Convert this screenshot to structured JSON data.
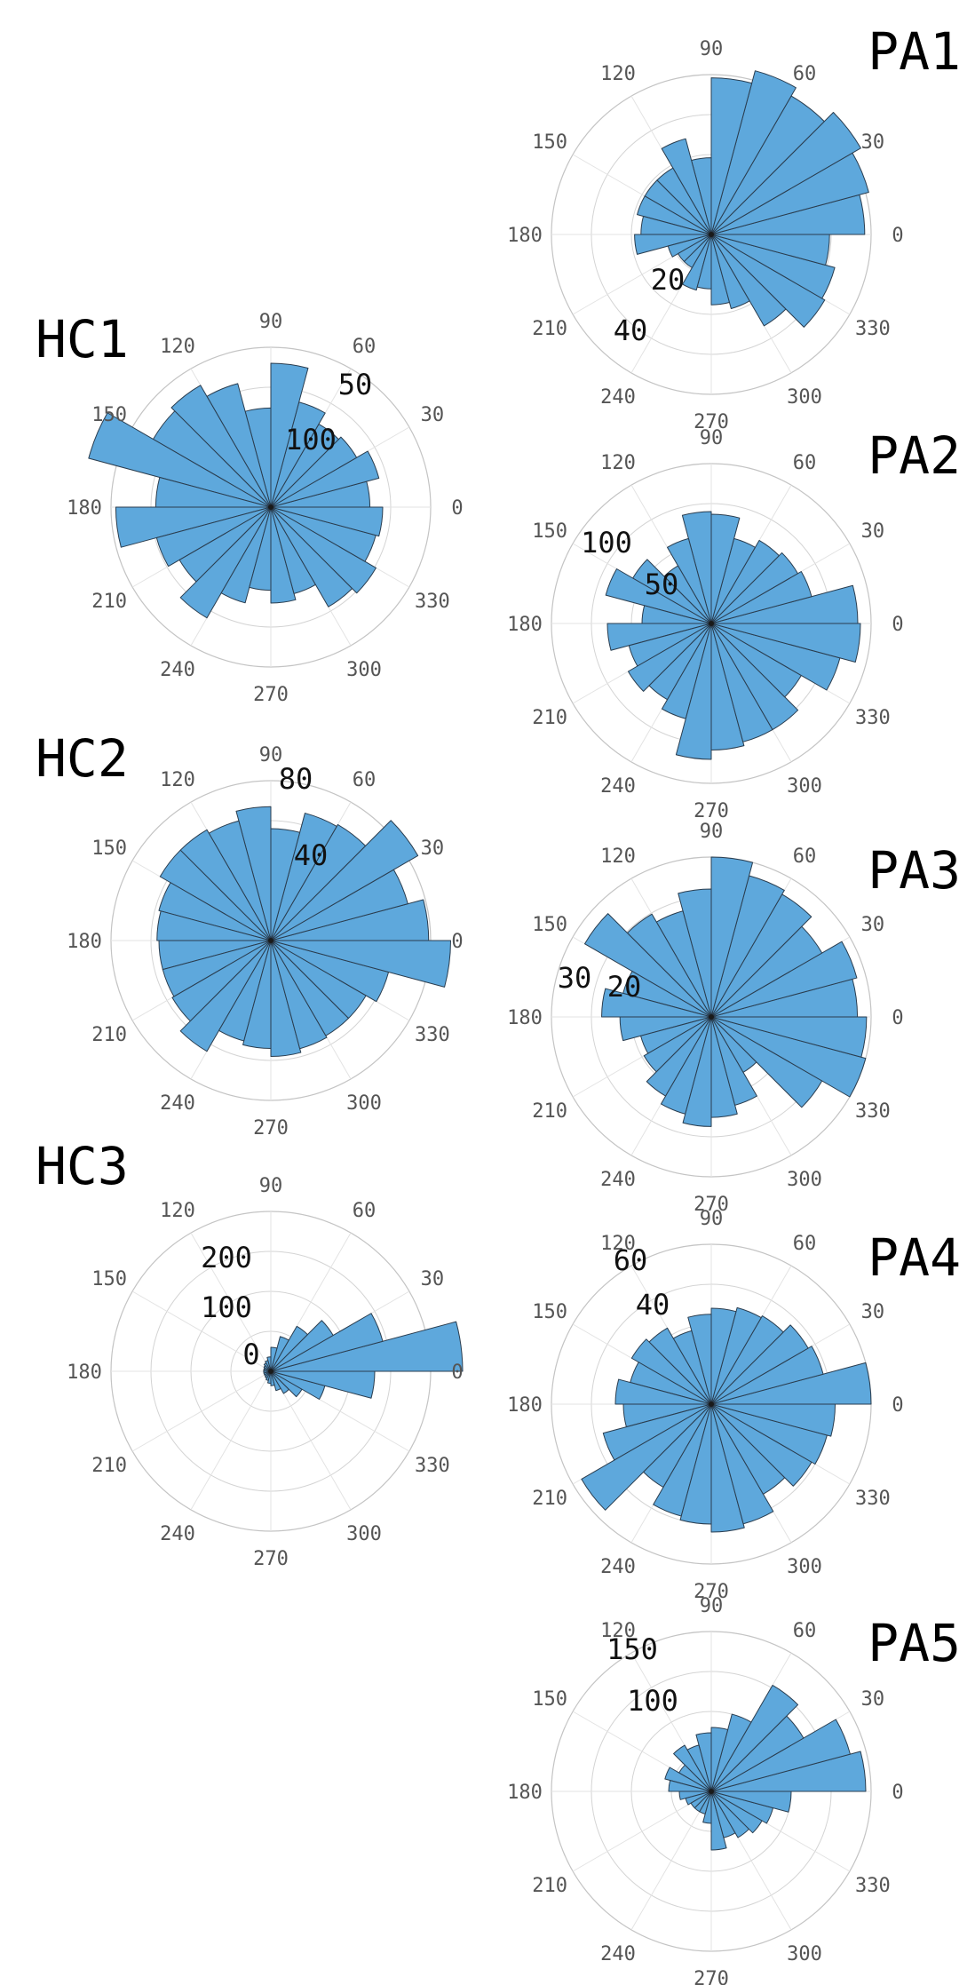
{
  "chart_data": [
    {
      "type": "rose",
      "title": "HC1",
      "angle_ticks": [
        "0",
        "30",
        "60",
        "90",
        "120",
        "150",
        "180",
        "210",
        "240",
        "270",
        "300",
        "330"
      ],
      "bin_width_deg": 15,
      "bin_start_deg": [
        0,
        15,
        30,
        45,
        60,
        75,
        90,
        105,
        120,
        135,
        150,
        165,
        180,
        195,
        210,
        225,
        240,
        255,
        270,
        285,
        300,
        315,
        330,
        345
      ],
      "values": [
        62,
        70,
        62,
        60,
        68,
        90,
        62,
        80,
        88,
        85,
        118,
        72,
        97,
        74,
        66,
        80,
        62,
        52,
        60,
        56,
        72,
        76,
        68,
        70
      ],
      "rmax": 100,
      "radial_ticks": [
        "50",
        "100"
      ]
    },
    {
      "type": "rose",
      "title": "HC2",
      "angle_ticks": [
        "0",
        "30",
        "60",
        "90",
        "120",
        "150",
        "180",
        "210",
        "240",
        "270",
        "300",
        "330"
      ],
      "bin_width_deg": 15,
      "bin_start_deg": [
        0,
        15,
        30,
        45,
        60,
        75,
        90,
        105,
        120,
        135,
        150,
        165,
        180,
        195,
        210,
        225,
        240,
        255,
        270,
        285,
        300,
        315,
        330,
        345
      ],
      "values": [
        79,
        71,
        85,
        67,
        66,
        56,
        67,
        62,
        64,
        64,
        58,
        57,
        56,
        56,
        57,
        64,
        52,
        54,
        58,
        56,
        55,
        55,
        61,
        90
      ],
      "rmax": 80,
      "radial_ticks": [
        "40",
        "80"
      ]
    },
    {
      "type": "rose",
      "title": "HC3",
      "angle_ticks": [
        "0",
        "30",
        "60",
        "90",
        "120",
        "150",
        "180",
        "210",
        "240",
        "270",
        "300",
        "330"
      ],
      "bin_width_deg": 15,
      "bin_start_deg": [
        0,
        15,
        30,
        45,
        60,
        75,
        90,
        105,
        120,
        135,
        150,
        165,
        180,
        195,
        210,
        225,
        240,
        255,
        270,
        285,
        300,
        315,
        330,
        345
      ],
      "values": [
        240,
        145,
        90,
        65,
        45,
        30,
        18,
        14,
        12,
        10,
        9,
        9,
        9,
        9,
        9,
        10,
        12,
        15,
        18,
        25,
        32,
        45,
        70,
        130
      ],
      "rmax": 200,
      "radial_ticks": [
        "0",
        "100",
        "200"
      ]
    },
    {
      "type": "rose",
      "title": "PA1",
      "angle_ticks": [
        "0",
        "30",
        "60",
        "90",
        "120",
        "150",
        "180",
        "210",
        "240",
        "270",
        "300",
        "330"
      ],
      "bin_width_deg": 15,
      "bin_start_deg": [
        0,
        15,
        30,
        45,
        60,
        75,
        90,
        105,
        120,
        135,
        150,
        165,
        180,
        195,
        210,
        225,
        240,
        255,
        270,
        285,
        300,
        315,
        330,
        345
      ],
      "values": [
        48,
        51,
        54,
        50,
        53,
        49,
        24,
        31,
        24,
        24,
        24,
        22,
        24,
        14,
        12,
        12,
        18,
        17,
        22,
        24,
        33,
        41,
        40,
        37
      ],
      "rmax": 50,
      "radial_ticks": [
        "20",
        "40"
      ]
    },
    {
      "type": "rose",
      "title": "PA2",
      "angle_ticks": [
        "0",
        "30",
        "60",
        "90",
        "120",
        "150",
        "180",
        "210",
        "240",
        "270",
        "300",
        "330"
      ],
      "bin_width_deg": 15,
      "bin_start_deg": [
        0,
        15,
        30,
        45,
        60,
        75,
        90,
        105,
        120,
        135,
        150,
        165,
        180,
        195,
        210,
        225,
        240,
        255,
        270,
        285,
        300,
        315,
        330,
        345
      ],
      "values": [
        110,
        78,
        75,
        72,
        66,
        82,
        84,
        66,
        50,
        68,
        82,
        52,
        78,
        64,
        72,
        66,
        74,
        102,
        95,
        92,
        92,
        78,
        100,
        112
      ],
      "rmax": 120,
      "radial_ticks": [
        "50",
        "100"
      ]
    },
    {
      "type": "rose",
      "title": "PA3",
      "angle_ticks": [
        "0",
        "30",
        "60",
        "90",
        "120",
        "150",
        "180",
        "210",
        "240",
        "270",
        "300",
        "330"
      ],
      "bin_width_deg": 15,
      "bin_start_deg": [
        0,
        15,
        30,
        45,
        60,
        75,
        90,
        105,
        120,
        135,
        150,
        165,
        180,
        195,
        210,
        225,
        240,
        255,
        270,
        285,
        300,
        315,
        330,
        345
      ],
      "values": [
        32,
        33,
        28,
        31,
        32,
        35,
        28,
        24,
        26,
        32,
        20,
        24,
        20,
        16,
        17,
        20,
        22,
        24,
        22,
        20,
        14,
        28,
        35,
        34
      ],
      "rmax": 35,
      "radial_ticks": [
        "20",
        "30"
      ]
    },
    {
      "type": "rose",
      "title": "PA4",
      "angle_ticks": [
        "0",
        "30",
        "60",
        "90",
        "120",
        "150",
        "180",
        "210",
        "240",
        "270",
        "300",
        "330"
      ],
      "bin_width_deg": 15,
      "bin_start_deg": [
        0,
        15,
        30,
        45,
        60,
        75,
        90,
        105,
        120,
        135,
        150,
        165,
        180,
        195,
        210,
        225,
        240,
        255,
        270,
        285,
        300,
        315,
        330,
        345
      ],
      "values": [
        80,
        58,
        56,
        51,
        50,
        48,
        45,
        38,
        44,
        46,
        42,
        48,
        44,
        56,
        75,
        48,
        58,
        60,
        64,
        62,
        52,
        58,
        60,
        62
      ],
      "rmax": 80,
      "radial_ticks": [
        "40",
        "60"
      ]
    },
    {
      "type": "rose",
      "title": "PA5",
      "angle_ticks": [
        "0",
        "30",
        "60",
        "90",
        "120",
        "150",
        "180",
        "210",
        "240",
        "270",
        "300",
        "330"
      ],
      "bin_width_deg": 15,
      "bin_start_deg": [
        0,
        15,
        30,
        45,
        60,
        75,
        90,
        105,
        120,
        135,
        150,
        165,
        180,
        195,
        210,
        225,
        240,
        255,
        270,
        285,
        300,
        315,
        330,
        345
      ],
      "values": [
        145,
        135,
        100,
        115,
        75,
        60,
        55,
        45,
        50,
        35,
        45,
        40,
        30,
        25,
        22,
        22,
        22,
        30,
        55,
        45,
        50,
        55,
        60,
        75
      ],
      "rmax": 150,
      "radial_ticks": [
        "100",
        "150"
      ]
    }
  ]
}
